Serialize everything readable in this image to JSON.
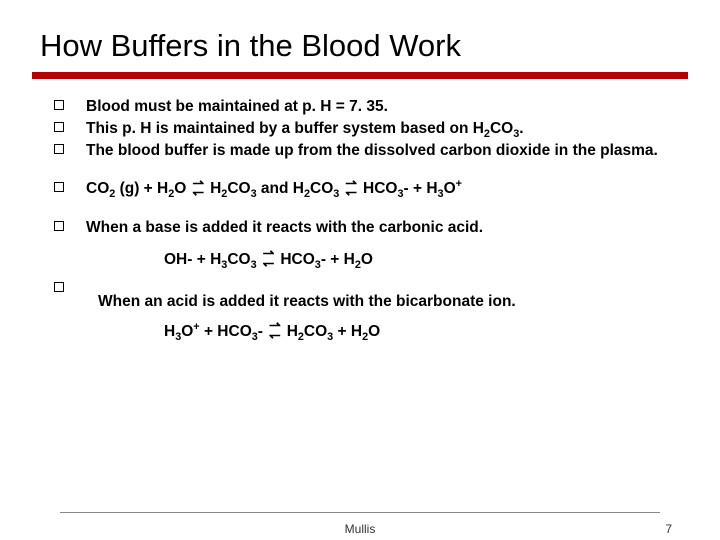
{
  "title": "How Buffers in the Blood Work",
  "bullets": {
    "b1": "Blood must be maintained at p. H = 7. 35.",
    "b2_a": "This p. H is maintained by a buffer system based on H",
    "b2_b": "CO",
    "b2_c": ".",
    "b3": "The blood buffer is made up from the dissolved carbon dioxide in the plasma."
  },
  "eq1": {
    "p1": "CO",
    "p2": " (g) + H",
    "p3": "O",
    "p4": "H",
    "p5": "CO",
    "p6": "  and  H",
    "p7": "CO",
    "p8": "HCO",
    "p9": "- + H",
    "p10": "O"
  },
  "line_base": "When a base is added it reacts with the carbonic acid.",
  "eq2": {
    "p1": "OH- + H",
    "p2": "CO",
    "p3": "HCO",
    "p4": "- + H",
    "p5": "O"
  },
  "line_acid": "When an acid is added it reacts with the bicarbonate ion.",
  "eq3": {
    "p1": "H",
    "p2": "O",
    "p3": " + HCO",
    "p4": "-",
    "p5": "H",
    "p6": "CO",
    "p7": " + H",
    "p8": "O"
  },
  "footer": {
    "author": "Mullis",
    "page": "7"
  },
  "colors": {
    "accent": "#b40000"
  }
}
